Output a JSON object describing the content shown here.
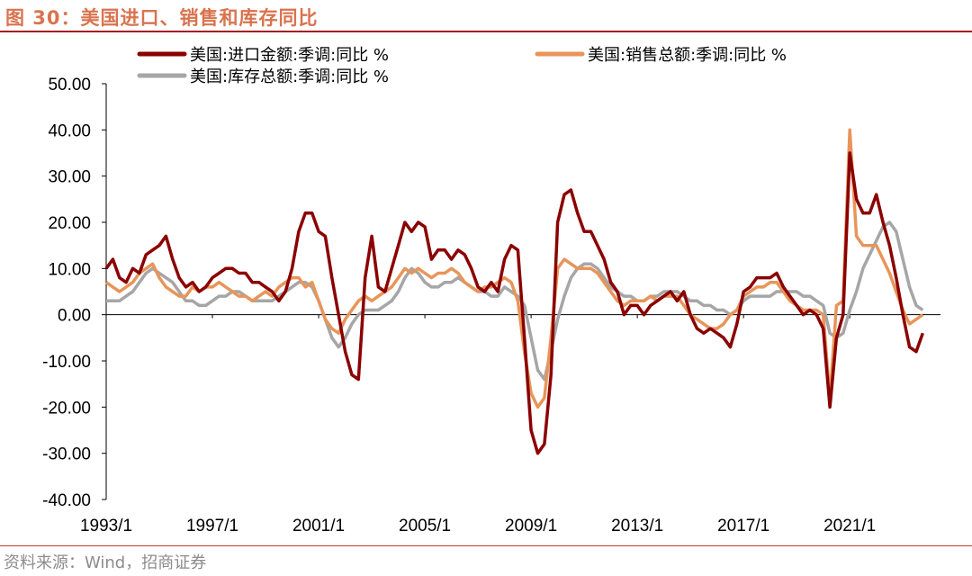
{
  "title": "图 30：美国进口、销售和库存同比",
  "source": "资料来源：Wind，招商证券",
  "chart_data": {
    "type": "line",
    "title": "图 30：美国进口、销售和库存同比",
    "xlabel": "",
    "ylabel": "",
    "ylim": [
      -40,
      50
    ],
    "yticks": [
      "50.00",
      "40.00",
      "30.00",
      "20.00",
      "10.00",
      "0.00",
      "-10.00",
      "-20.00",
      "-30.00",
      "-40.00"
    ],
    "xticks": [
      "1993/1",
      "1997/1",
      "2001/1",
      "2005/1",
      "2009/1",
      "2013/1",
      "2017/1",
      "2021/1"
    ],
    "xlim": [
      "1993/1",
      "2024/6"
    ],
    "grid": false,
    "legend_placement": "top",
    "x": [
      "1993/1",
      "1993/4",
      "1993/7",
      "1993/10",
      "1994/1",
      "1994/4",
      "1994/7",
      "1994/10",
      "1995/1",
      "1995/4",
      "1995/7",
      "1995/10",
      "1996/1",
      "1996/4",
      "1996/7",
      "1996/10",
      "1997/1",
      "1997/4",
      "1997/7",
      "1997/10",
      "1998/1",
      "1998/4",
      "1998/7",
      "1998/10",
      "1999/1",
      "1999/4",
      "1999/7",
      "1999/10",
      "2000/1",
      "2000/4",
      "2000/7",
      "2000/10",
      "2001/1",
      "2001/4",
      "2001/7",
      "2001/10",
      "2002/1",
      "2002/4",
      "2002/7",
      "2002/10",
      "2003/1",
      "2003/4",
      "2003/7",
      "2003/10",
      "2004/1",
      "2004/4",
      "2004/7",
      "2004/10",
      "2005/1",
      "2005/4",
      "2005/7",
      "2005/10",
      "2006/1",
      "2006/4",
      "2006/7",
      "2006/10",
      "2007/1",
      "2007/4",
      "2007/7",
      "2007/10",
      "2008/1",
      "2008/4",
      "2008/7",
      "2008/10",
      "2009/1",
      "2009/4",
      "2009/7",
      "2009/10",
      "2010/1",
      "2010/4",
      "2010/7",
      "2010/10",
      "2011/1",
      "2011/4",
      "2011/7",
      "2011/10",
      "2012/1",
      "2012/4",
      "2012/7",
      "2012/10",
      "2013/1",
      "2013/4",
      "2013/7",
      "2013/10",
      "2014/1",
      "2014/4",
      "2014/7",
      "2014/10",
      "2015/1",
      "2015/4",
      "2015/7",
      "2015/10",
      "2016/1",
      "2016/4",
      "2016/7",
      "2016/10",
      "2017/1",
      "2017/4",
      "2017/7",
      "2017/10",
      "2018/1",
      "2018/4",
      "2018/7",
      "2018/10",
      "2019/1",
      "2019/4",
      "2019/7",
      "2019/10",
      "2020/1",
      "2020/4",
      "2020/7",
      "2020/10",
      "2021/1",
      "2021/4",
      "2021/7",
      "2021/10",
      "2022/1",
      "2022/4",
      "2022/7",
      "2022/10",
      "2023/1",
      "2023/4",
      "2023/7",
      "2023/10"
    ],
    "series": [
      {
        "name": "美国:进口金额:季调:同比 %",
        "color": "#8b0000",
        "values": [
          10,
          12,
          8,
          7,
          10,
          9,
          13,
          14,
          15,
          17,
          12,
          8,
          6,
          7,
          5,
          6,
          8,
          9,
          10,
          10,
          9,
          9,
          7,
          7,
          6,
          5,
          3,
          5,
          10,
          18,
          22,
          22,
          18,
          17,
          8,
          0,
          -8,
          -13,
          -14,
          8,
          17,
          6,
          5,
          10,
          15,
          20,
          18,
          20,
          19,
          12,
          14,
          14,
          12,
          14,
          13,
          10,
          6,
          5,
          7,
          5,
          12,
          15,
          14,
          -5,
          -25,
          -30,
          -28,
          -13,
          20,
          26,
          27,
          22,
          18,
          18,
          15,
          12,
          7,
          5,
          0,
          2,
          2,
          0,
          2,
          3,
          4,
          5,
          3,
          5,
          0,
          -3,
          -4,
          -3,
          -4,
          -5,
          -7,
          -2,
          5,
          6,
          8,
          8,
          8,
          9,
          6,
          4,
          2,
          0,
          1,
          0,
          -3,
          -20,
          -5,
          0,
          35,
          25,
          22,
          22,
          26,
          20,
          15,
          8,
          0,
          -7,
          -8,
          -4
        ]
      },
      {
        "name": "美国:销售总额:季调:同比 %",
        "color": "#e8955a",
        "values": [
          7,
          6,
          5,
          6,
          7,
          9,
          10,
          11,
          8,
          6,
          5,
          4,
          4,
          6,
          5,
          6,
          6,
          7,
          6,
          5,
          4,
          4,
          3,
          4,
          5,
          4,
          6,
          7,
          8,
          8,
          6,
          7,
          3,
          -1,
          -3,
          -4,
          -1,
          1,
          3,
          4,
          3,
          4,
          5,
          6,
          8,
          10,
          9,
          10,
          9,
          8,
          9,
          9,
          10,
          9,
          7,
          6,
          5,
          6,
          6,
          7,
          8,
          7,
          3,
          -8,
          -17,
          -20,
          -18,
          -5,
          10,
          12,
          11,
          10,
          10,
          10,
          9,
          7,
          5,
          3,
          2,
          3,
          3,
          3,
          4,
          3,
          4,
          4,
          4,
          2,
          0,
          -1,
          -2,
          -3,
          -3,
          -2,
          0,
          1,
          4,
          5,
          6,
          6,
          7,
          7,
          5,
          3,
          2,
          1,
          1,
          1,
          0,
          -18,
          2,
          3,
          40,
          17,
          15,
          15,
          15,
          12,
          9,
          5,
          1,
          -2,
          -1,
          0
        ]
      },
      {
        "name": "美国:库存总额:季调:同比 %",
        "color": "#a6a6a6",
        "values": [
          3,
          3,
          3,
          4,
          5,
          7,
          9,
          10,
          9,
          8,
          7,
          5,
          3,
          3,
          2,
          2,
          3,
          4,
          4,
          5,
          5,
          4,
          3,
          3,
          3,
          3,
          4,
          5,
          6,
          7,
          7,
          6,
          3,
          -1,
          -5,
          -7,
          -5,
          -2,
          0,
          1,
          1,
          1,
          2,
          3,
          5,
          8,
          10,
          9,
          7,
          6,
          6,
          7,
          7,
          8,
          7,
          6,
          5,
          5,
          4,
          4,
          6,
          5,
          4,
          2,
          -5,
          -12,
          -14,
          -8,
          -1,
          4,
          8,
          10,
          11,
          11,
          10,
          8,
          6,
          5,
          4,
          4,
          3,
          3,
          4,
          4,
          5,
          5,
          5,
          4,
          3,
          3,
          2,
          2,
          1,
          1,
          0,
          1,
          3,
          4,
          4,
          4,
          4,
          5,
          5,
          5,
          5,
          4,
          4,
          3,
          2,
          -4,
          -5,
          -4,
          1,
          5,
          10,
          13,
          16,
          19,
          20,
          18,
          12,
          6,
          2,
          1
        ]
      }
    ]
  }
}
